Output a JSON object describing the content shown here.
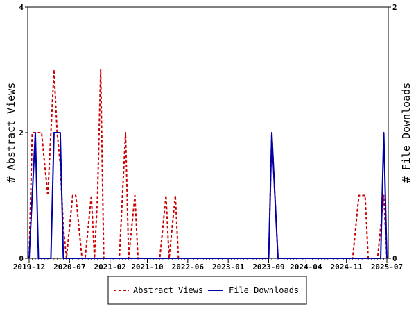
{
  "chart_data": {
    "type": "line",
    "title": "",
    "y_left_label": "# Abstract Views",
    "y_right_label": "# File Downloads",
    "y_left_lim": [
      0,
      4
    ],
    "y_right_lim": [
      0,
      2
    ],
    "y_left_ticks": [
      "0",
      "2",
      "4"
    ],
    "y_right_ticks": [
      "0",
      "2"
    ],
    "x_tick_labels": [
      "2019-12",
      "2020-07",
      "2021-02",
      "2021-10",
      "2022-06",
      "2023-01",
      "2023-09",
      "2024-04",
      "2024-11",
      "2025-07"
    ],
    "legend_position": "bottom",
    "colors": {
      "abstract_views": "#cc0000",
      "file_downloads": "#0000aa"
    },
    "series": [
      {
        "name": "Abstract Views",
        "axis": "left",
        "style": "dashed",
        "values": [
          0,
          2,
          2,
          2,
          2,
          1.5,
          1,
          2,
          3,
          2,
          1.5,
          0.5,
          0,
          0.5,
          1,
          1,
          0.5,
          0,
          0,
          0.5,
          1,
          0,
          1,
          3,
          0,
          0,
          0,
          0,
          0,
          0,
          1,
          2,
          0,
          0.5,
          1,
          0,
          0,
          0,
          0,
          0,
          0,
          0,
          0,
          0.5,
          1,
          0,
          0.5,
          1,
          0,
          0,
          0,
          0,
          0,
          0,
          0,
          0,
          0,
          0,
          0,
          0,
          0,
          0,
          0,
          0,
          0,
          0,
          0,
          0,
          0,
          0,
          0,
          0,
          0,
          0,
          0,
          0,
          0,
          0,
          2,
          1,
          0,
          0,
          0,
          0,
          0,
          0,
          0,
          0,
          0,
          0,
          0,
          0,
          0,
          0,
          0,
          0,
          0,
          0,
          0,
          0,
          0,
          0,
          0,
          0,
          0,
          0.5,
          1,
          1,
          1,
          0,
          0,
          0,
          0,
          0.5,
          1,
          0
        ]
      },
      {
        "name": "File Downloads",
        "axis": "right",
        "style": "solid",
        "values": [
          0,
          0.5,
          1,
          0,
          0,
          0,
          0,
          0,
          1,
          1,
          1,
          0,
          0,
          0,
          0,
          0,
          0,
          0,
          0,
          0,
          0,
          0,
          0,
          0,
          0,
          0,
          0,
          0,
          0,
          0,
          0,
          0,
          0,
          0,
          0,
          0,
          0,
          0,
          0,
          0,
          0,
          0,
          0,
          0,
          0,
          0,
          0,
          0,
          0,
          0,
          0,
          0,
          0,
          0,
          0,
          0,
          0,
          0,
          0,
          0,
          0,
          0,
          0,
          0,
          0,
          0,
          0,
          0,
          0,
          0,
          0,
          0,
          0,
          0,
          0,
          0,
          0,
          0,
          1,
          0.5,
          0,
          0,
          0,
          0,
          0,
          0,
          0,
          0,
          0,
          0,
          0,
          0,
          0,
          0,
          0,
          0,
          0,
          0,
          0,
          0,
          0,
          0,
          0,
          0,
          0,
          0,
          0,
          0,
          0,
          0,
          0,
          0,
          0,
          0,
          1,
          0
        ]
      }
    ]
  }
}
